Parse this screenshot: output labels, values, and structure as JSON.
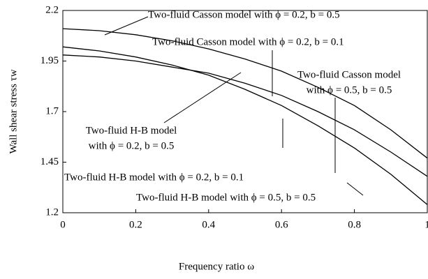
{
  "chart_data": {
    "type": "line",
    "xlabel": "Frequency ratio ω",
    "ylabel": "Wall shear stress τw",
    "x": [
      0,
      0.1,
      0.2,
      0.3,
      0.4,
      0.5,
      0.6,
      0.7,
      0.8,
      0.9,
      1
    ],
    "series": [
      {
        "color": "#000000",
        "values": [
          2.11,
          2.1,
          2.08,
          2.05,
          2.01,
          1.96,
          1.9,
          1.82,
          1.73,
          1.61,
          1.47
        ]
      },
      {
        "color": "#000000",
        "values": [
          2.02,
          2.0,
          1.97,
          1.93,
          1.88,
          1.81,
          1.73,
          1.63,
          1.52,
          1.39,
          1.24
        ]
      },
      {
        "color": "#000000",
        "values": [
          1.98,
          1.97,
          1.95,
          1.92,
          1.89,
          1.84,
          1.78,
          1.7,
          1.61,
          1.5,
          1.38
        ]
      }
    ],
    "annotations": [
      [
        "Two-fluid Casson model with ϕ = 0.2, b = 0.5"
      ],
      [
        "Two-fluid Casson model with ϕ = 0.2, b = 0.1"
      ],
      [
        "Two-fluid Casson model",
        "with ϕ = 0.5, b = 0.5"
      ],
      [
        "Two-fluid H-B model",
        "with ϕ = 0.2, b = 0.5"
      ],
      [
        "Two-fluid H-B model with ϕ = 0.2, b = 0.1"
      ],
      [
        "Two-fluid H-B model with ϕ = 0.5, b = 0.5"
      ]
    ],
    "xlim": [
      0,
      1
    ],
    "xticks": [
      0,
      0.2,
      0.4,
      0.6,
      0.8,
      1
    ],
    "ylim": [
      1.2,
      2.2
    ],
    "yticks": [
      1.2,
      1.45,
      1.7,
      1.95,
      2.2
    ],
    "grid": false
  }
}
